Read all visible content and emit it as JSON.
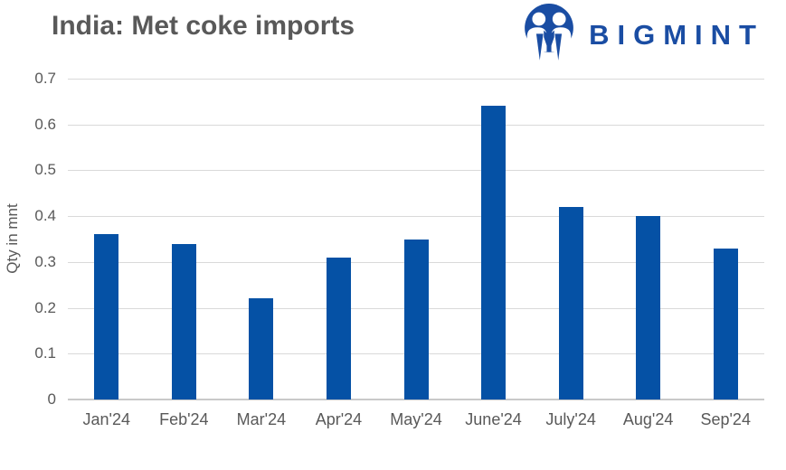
{
  "header": {
    "title": "India: Met coke imports",
    "brand": "BIGMINT"
  },
  "colors": {
    "bar": "#0551a5",
    "brand": "#1a4da3",
    "title_text": "#595959",
    "axis_text": "#595959",
    "gridline": "#d9d9d9",
    "axis_line": "#c9c9c9"
  },
  "chart_data": {
    "type": "bar",
    "title": "India: Met coke imports",
    "categories": [
      "Jan'24",
      "Feb'24",
      "Mar'24",
      "Apr'24",
      "May'24",
      "June'24",
      "July'24",
      "Aug'24",
      "Sep'24"
    ],
    "values": [
      0.36,
      0.34,
      0.22,
      0.31,
      0.35,
      0.64,
      0.42,
      0.4,
      0.33
    ],
    "xlabel": "",
    "ylabel": "Qty in mnt",
    "ylim": [
      0,
      0.7
    ],
    "ytick_values": [
      0,
      0.1,
      0.2,
      0.3,
      0.4,
      0.5,
      0.6,
      0.7
    ],
    "ytick_labels": [
      "0",
      "0.1",
      "0.2",
      "0.3",
      "0.4",
      "0.5",
      "0.6",
      "0.7"
    ],
    "grid": "horizontal",
    "legend": "none",
    "bar_color": "#0551a5"
  }
}
